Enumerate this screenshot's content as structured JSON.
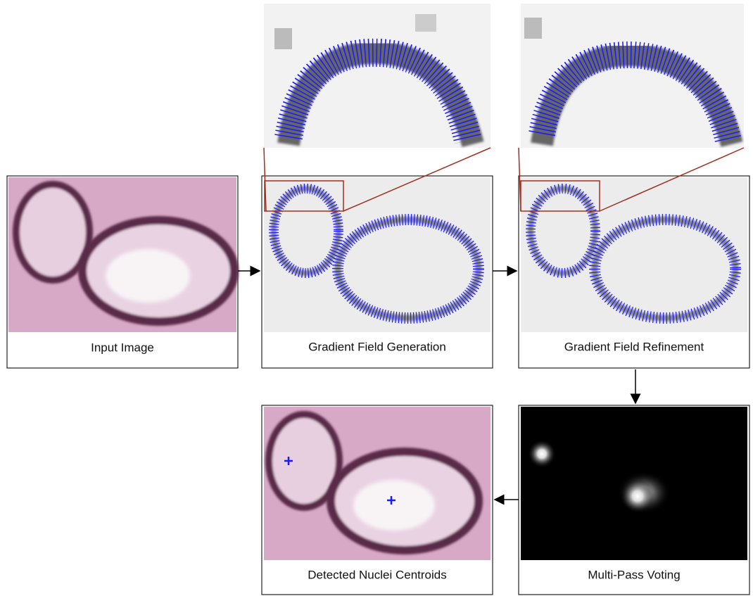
{
  "panels": [
    {
      "label": "Input Image"
    },
    {
      "label": "Gradient Field Generation"
    },
    {
      "label": "Gradient Field Refinement"
    },
    {
      "label": "Multi-Pass Voting"
    },
    {
      "label": "Detected Nuclei Centroids"
    }
  ]
}
